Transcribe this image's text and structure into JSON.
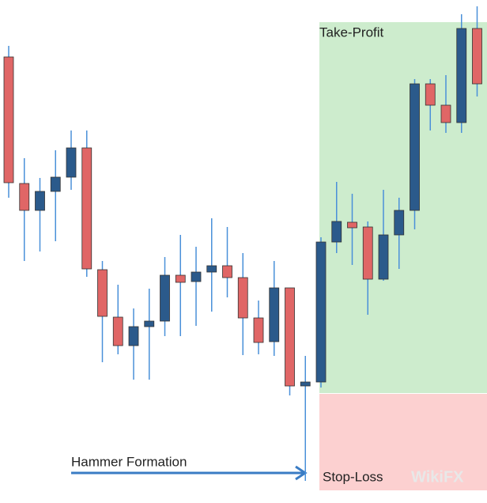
{
  "chart_data": {
    "type": "candlestick",
    "annotations": {
      "take_profit": "Take-Profit",
      "stop_loss": "Stop-Loss",
      "pattern": "Hammer Formation",
      "watermark": "WikiFX"
    },
    "series": [
      {
        "open": [
          564,
          404,
          370,
          394,
          412,
          449,
          295,
          235,
          199,
          223,
          230,
          288,
          280,
          292,
          300,
          285,
          234,
          204,
          272,
          148,
          153,
          330,
          355,
          349,
          283,
          339,
          370,
          530,
          503,
          481,
          600
        ],
        "high": [
          578,
          436,
          411,
          446,
          471,
          471,
          306,
          276,
          246,
          271,
          311,
          339,
          324,
          360,
          349,
          316,
          256,
          306,
          272,
          186,
          336,
          406,
          391,
          356,
          396,
          386,
          536,
          536,
          541,
          618,
          628
        ],
        "low": [
          386,
          306,
          318,
          331,
          396,
          286,
          178,
          188,
          156,
          156,
          211,
          211,
          224,
          242,
          260,
          187,
          188,
          186,
          136,
          28,
          146,
          316,
          301,
          238,
          281,
          296,
          346,
          471,
          468,
          468,
          514
        ],
        "close": [
          405,
          370,
          394,
          412,
          449,
          296,
          236,
          199,
          223,
          230,
          288,
          279,
          292,
          300,
          285,
          234,
          203,
          272,
          148,
          153,
          330,
          356,
          348,
          283,
          339,
          370,
          530,
          503,
          481,
          600,
          530
        ]
      }
    ],
    "up_color": "#2b5a8b",
    "down_color": "#e06666",
    "ylim": [
      0,
      636
    ]
  }
}
